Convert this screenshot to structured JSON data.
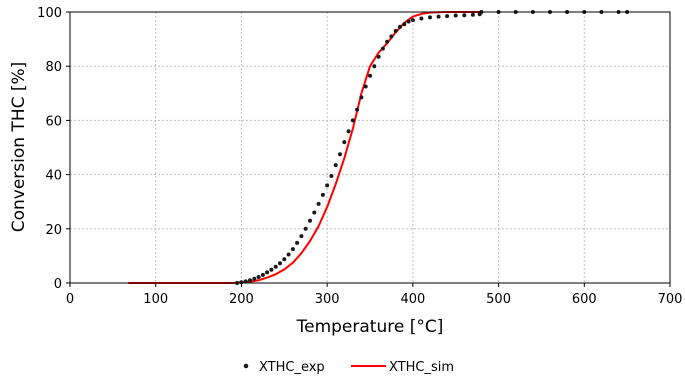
{
  "chart_data": {
    "type": "scatter",
    "xlabel": "Temperature [°C]",
    "ylabel": "Conversion THC [%]",
    "xlim": [
      0,
      700
    ],
    "ylim": [
      0,
      100
    ],
    "xticks": [
      "0",
      "100",
      "200",
      "300",
      "400",
      "500",
      "600",
      "700"
    ],
    "yticks": [
      "0",
      "20",
      "40",
      "60",
      "80",
      "100"
    ],
    "grid": true,
    "legend_position": "bottom",
    "series": [
      {
        "name": "XTHC_exp",
        "kind": "markers",
        "color": "#1a1a1a",
        "points": [
          [
            195,
            0
          ],
          [
            200,
            0.3
          ],
          [
            205,
            0.6
          ],
          [
            210,
            1.0
          ],
          [
            215,
            1.6
          ],
          [
            220,
            2.2
          ],
          [
            225,
            3.0
          ],
          [
            230,
            3.9
          ],
          [
            235,
            4.9
          ],
          [
            240,
            6.0
          ],
          [
            245,
            7.3
          ],
          [
            250,
            8.8
          ],
          [
            255,
            10.5
          ],
          [
            260,
            12.5
          ],
          [
            265,
            14.8
          ],
          [
            270,
            17.3
          ],
          [
            275,
            20.0
          ],
          [
            280,
            23.0
          ],
          [
            285,
            26.0
          ],
          [
            290,
            29.2
          ],
          [
            295,
            32.5
          ],
          [
            300,
            36.0
          ],
          [
            305,
            39.5
          ],
          [
            310,
            43.5
          ],
          [
            315,
            47.5
          ],
          [
            320,
            52.0
          ],
          [
            325,
            56.0
          ],
          [
            330,
            60.0
          ],
          [
            335,
            64.0
          ],
          [
            340,
            68.5
          ],
          [
            345,
            72.5
          ],
          [
            350,
            76.5
          ],
          [
            355,
            80.0
          ],
          [
            360,
            83.5
          ],
          [
            365,
            86.5
          ],
          [
            370,
            89.0
          ],
          [
            375,
            91.0
          ],
          [
            380,
            93.0
          ],
          [
            385,
            94.5
          ],
          [
            390,
            95.5
          ],
          [
            395,
            96.5
          ],
          [
            400,
            97.0
          ],
          [
            410,
            97.6
          ],
          [
            420,
            98.0
          ],
          [
            430,
            98.3
          ],
          [
            440,
            98.5
          ],
          [
            450,
            98.7
          ],
          [
            460,
            98.8
          ],
          [
            470,
            99.0
          ],
          [
            478,
            99.2
          ],
          [
            480,
            100
          ],
          [
            500,
            100
          ],
          [
            520,
            100
          ],
          [
            540,
            100
          ],
          [
            560,
            100
          ],
          [
            580,
            100
          ],
          [
            600,
            100
          ],
          [
            620,
            100
          ],
          [
            640,
            100
          ],
          [
            650,
            100
          ]
        ]
      },
      {
        "name": "XTHC_sim",
        "kind": "line",
        "color": "#ff0000",
        "points": [
          [
            68,
            0
          ],
          [
            100,
            0
          ],
          [
            150,
            0
          ],
          [
            190,
            0
          ],
          [
            210,
            0.5
          ],
          [
            220,
            1.0
          ],
          [
            230,
            2.0
          ],
          [
            240,
            3.2
          ],
          [
            250,
            5.0
          ],
          [
            260,
            7.5
          ],
          [
            270,
            11.0
          ],
          [
            280,
            15.5
          ],
          [
            290,
            21.0
          ],
          [
            300,
            28.0
          ],
          [
            310,
            36.5
          ],
          [
            320,
            46.0
          ],
          [
            330,
            57.0
          ],
          [
            340,
            70.0
          ],
          [
            350,
            80.0
          ],
          [
            360,
            85.0
          ],
          [
            370,
            88.5
          ],
          [
            380,
            92.5
          ],
          [
            390,
            96.0
          ],
          [
            400,
            98.3
          ],
          [
            410,
            99.3
          ],
          [
            420,
            99.8
          ],
          [
            440,
            100
          ],
          [
            460,
            100
          ],
          [
            480,
            100
          ]
        ]
      }
    ]
  }
}
